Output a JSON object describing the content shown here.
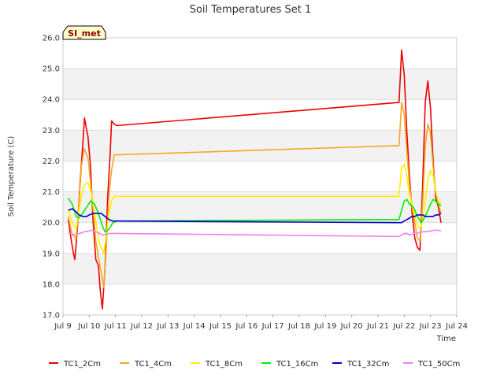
{
  "chart_data": {
    "type": "line",
    "title": "Soil Temperatures Set 1",
    "xlabel": "Time",
    "ylabel": "Soil Temperature (C)",
    "badge": "SI_met",
    "ylim": [
      17.0,
      26.0
    ],
    "xlim": [
      9.0,
      24.0
    ],
    "y_ticks": [
      "17.0",
      "18.0",
      "19.0",
      "20.0",
      "21.0",
      "22.0",
      "23.0",
      "24.0",
      "25.0",
      "26.0"
    ],
    "x_ticks": [
      "Jul 9",
      "Jul 10",
      "Jul 11",
      "Jul 12",
      "Jul 13",
      "Jul 14",
      "Jul 15",
      "Jul 16",
      "Jul 17",
      "Jul 18",
      "Jul 19",
      "Jul 20",
      "Jul 21",
      "Jul 22",
      "Jul 23",
      "Jul 24"
    ],
    "band_color": "#f2f2f2",
    "series": [
      {
        "name": "TC1_2Cm",
        "color": "#ee0000",
        "x": [
          9.2,
          9.3,
          9.4,
          9.45,
          9.55,
          9.65,
          9.75,
          9.82,
          9.9,
          9.95,
          10.05,
          10.15,
          10.25,
          10.35,
          10.42,
          10.5,
          10.6,
          10.7,
          10.8,
          10.85,
          10.95,
          11.05,
          21.8,
          21.9,
          22.0,
          22.1,
          22.2,
          22.3,
          22.4,
          22.5,
          22.6,
          22.7,
          22.8,
          22.9,
          23.0,
          23.1,
          23.2,
          23.3,
          23.4
        ],
        "y": [
          20.1,
          19.5,
          19.0,
          18.8,
          19.8,
          21.3,
          22.5,
          23.4,
          23.0,
          22.8,
          21.8,
          20.0,
          18.8,
          18.6,
          17.8,
          17.2,
          18.5,
          20.8,
          22.3,
          23.3,
          23.2,
          23.15,
          23.9,
          25.6,
          24.8,
          22.9,
          21.5,
          20.3,
          19.5,
          19.2,
          19.1,
          21.2,
          23.9,
          24.6,
          23.7,
          22.0,
          20.8,
          20.5,
          20.0
        ]
      },
      {
        "name": "TC1_4Cm",
        "color": "#f5a623",
        "x": [
          9.2,
          9.35,
          9.5,
          9.6,
          9.7,
          9.8,
          9.95,
          10.1,
          10.25,
          10.35,
          10.45,
          10.55,
          10.65,
          10.75,
          10.85,
          10.95,
          11.05,
          21.8,
          21.9,
          22.0,
          22.1,
          22.2,
          22.3,
          22.4,
          22.5,
          22.6,
          22.7,
          22.8,
          22.9,
          23.0,
          23.1,
          23.2,
          23.3,
          23.4
        ],
        "y": [
          20.2,
          19.6,
          19.5,
          20.5,
          21.8,
          22.4,
          22.1,
          20.9,
          19.4,
          18.9,
          18.4,
          17.9,
          19.2,
          20.9,
          21.7,
          22.2,
          22.2,
          22.5,
          23.9,
          23.5,
          22.3,
          21.2,
          20.5,
          20.0,
          19.5,
          19.4,
          20.6,
          22.5,
          23.2,
          22.9,
          21.8,
          21.0,
          20.6,
          20.3
        ]
      },
      {
        "name": "TC1_8Cm",
        "color": "#ffee00",
        "x": [
          9.2,
          9.35,
          9.5,
          9.6,
          9.7,
          9.8,
          9.95,
          10.1,
          10.25,
          10.4,
          10.55,
          10.65,
          10.75,
          10.85,
          10.95,
          11.05,
          21.8,
          21.9,
          22.0,
          22.1,
          22.2,
          22.3,
          22.4,
          22.5,
          22.6,
          22.7,
          22.8,
          22.9,
          23.0,
          23.1,
          23.2,
          23.3,
          23.4
        ],
        "y": [
          20.4,
          20.0,
          19.8,
          20.3,
          20.9,
          21.2,
          21.3,
          20.9,
          20.0,
          19.3,
          19.0,
          19.6,
          20.3,
          20.7,
          20.85,
          20.85,
          20.85,
          21.8,
          21.9,
          21.5,
          20.9,
          20.6,
          20.2,
          19.9,
          19.8,
          20.1,
          20.7,
          21.4,
          21.7,
          21.5,
          21.0,
          20.7,
          20.6
        ]
      },
      {
        "name": "TC1_16Cm",
        "color": "#00ee00",
        "x": [
          9.2,
          9.35,
          9.5,
          9.6,
          9.75,
          9.9,
          10.05,
          10.2,
          10.35,
          10.5,
          10.6,
          10.7,
          10.8,
          10.9,
          11.05,
          21.8,
          21.9,
          22.0,
          22.1,
          22.2,
          22.35,
          22.5,
          22.65,
          22.8,
          22.9,
          23.0,
          23.1,
          23.2,
          23.3,
          23.4
        ],
        "y": [
          20.8,
          20.6,
          20.2,
          20.15,
          20.3,
          20.5,
          20.7,
          20.6,
          20.3,
          19.9,
          19.7,
          19.75,
          19.85,
          20.0,
          20.05,
          20.1,
          20.4,
          20.7,
          20.75,
          20.6,
          20.5,
          20.2,
          20.0,
          20.2,
          20.4,
          20.6,
          20.75,
          20.7,
          20.6,
          20.55
        ]
      },
      {
        "name": "TC1_32Cm",
        "color": "#0000cc",
        "x": [
          9.2,
          9.35,
          9.5,
          9.6,
          9.75,
          9.9,
          10.0,
          10.15,
          10.3,
          10.45,
          10.6,
          10.75,
          10.9,
          11.05,
          21.8,
          21.9,
          22.0,
          22.1,
          22.2,
          22.3,
          22.4,
          22.5,
          22.6,
          22.7,
          22.8,
          22.9,
          23.0,
          23.1,
          23.2,
          23.3,
          23.4
        ],
        "y": [
          20.4,
          20.45,
          20.35,
          20.25,
          20.2,
          20.2,
          20.25,
          20.3,
          20.3,
          20.3,
          20.2,
          20.1,
          20.05,
          20.05,
          20.0,
          20.0,
          20.05,
          20.1,
          20.15,
          20.2,
          20.2,
          20.25,
          20.25,
          20.25,
          20.2,
          20.2,
          20.2,
          20.2,
          20.25,
          20.25,
          20.3
        ]
      },
      {
        "name": "TC1_50Cm",
        "color": "#ee82ee",
        "x": [
          9.2,
          9.35,
          9.5,
          9.65,
          9.8,
          9.95,
          10.1,
          10.25,
          10.4,
          10.5,
          10.65,
          10.8,
          11.05,
          21.8,
          21.9,
          22.0,
          22.1,
          22.2,
          22.3,
          22.4,
          22.5,
          22.6,
          22.7,
          22.8,
          22.9,
          23.0,
          23.1,
          23.2,
          23.3,
          23.4
        ],
        "y": [
          19.65,
          19.62,
          19.62,
          19.65,
          19.7,
          19.72,
          19.75,
          19.7,
          19.65,
          19.6,
          19.62,
          19.65,
          19.65,
          19.55,
          19.6,
          19.65,
          19.65,
          19.6,
          19.62,
          19.65,
          19.65,
          19.7,
          19.7,
          19.7,
          19.72,
          19.72,
          19.75,
          19.75,
          19.75,
          19.72
        ]
      }
    ]
  }
}
